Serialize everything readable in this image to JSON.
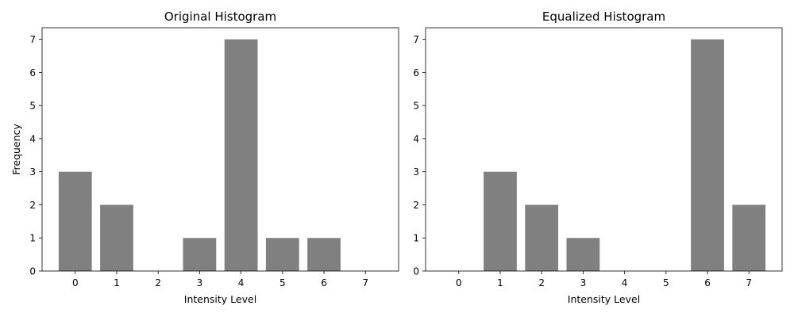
{
  "chart_data": [
    {
      "type": "bar",
      "title": "Original Histogram",
      "xlabel": "Intensity Level",
      "ylabel": "Frequency",
      "categories": [
        "0",
        "1",
        "2",
        "3",
        "4",
        "5",
        "6",
        "7"
      ],
      "values": [
        3,
        2,
        0,
        1,
        7,
        1,
        1,
        0
      ],
      "xlim": [
        -0.8,
        7.8
      ],
      "ylim": [
        0,
        7.35
      ],
      "yticks": [
        0,
        1,
        2,
        3,
        4,
        5,
        6,
        7
      ],
      "bar_color": "#808080",
      "grid": false
    },
    {
      "type": "bar",
      "title": "Equalized Histogram",
      "xlabel": "Intensity Level",
      "ylabel": "",
      "categories": [
        "0",
        "1",
        "2",
        "3",
        "4",
        "5",
        "6",
        "7"
      ],
      "values": [
        0,
        3,
        2,
        1,
        0,
        0,
        7,
        2
      ],
      "xlim": [
        -0.8,
        7.8
      ],
      "ylim": [
        0,
        7.35
      ],
      "yticks": [
        0,
        1,
        2,
        3,
        4,
        5,
        6,
        7
      ],
      "bar_color": "#808080",
      "grid": false
    }
  ]
}
